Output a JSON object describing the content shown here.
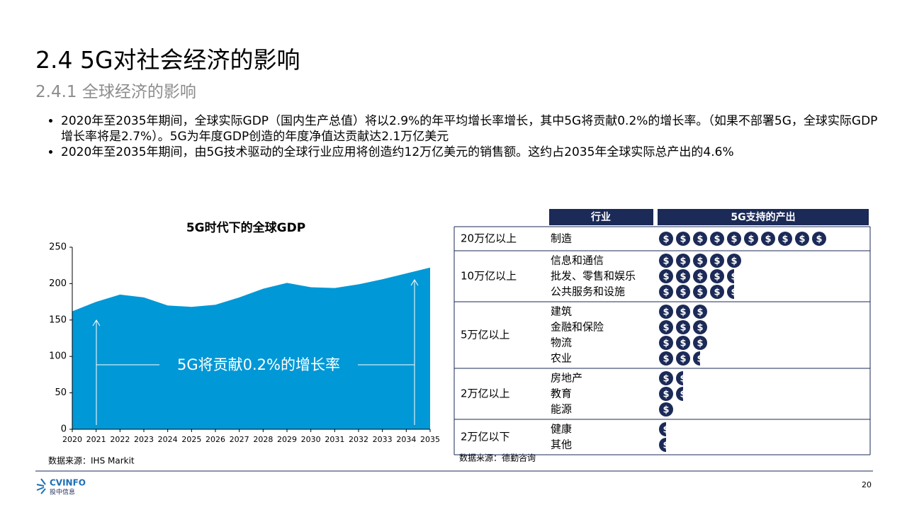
{
  "header": {
    "title": "2.4 5G对社会经济的影响",
    "subtitle": "2.4.1 全球经济的影响"
  },
  "bullets": [
    "2020年至2035年期间，全球实际GDP（国内生产总值）将以2.9%的年平均增长率增长，其中5G将贡献0.2%的增长率。（如果不部署5G，全球实际GDP增长率将是2.7%）。5G为年度GDP创造的年度净值达贡献达2.1万亿美元",
    "2020年至2035年期间，由5G技术驱动的全球行业应用将创造约12万亿美元的销售额。这约占2035年全球实际总产出的4.6%"
  ],
  "chart_data": {
    "type": "area",
    "title": "5G时代下的全球GDP",
    "x": [
      2020,
      2021,
      2022,
      2023,
      2024,
      2025,
      2026,
      2027,
      2028,
      2029,
      2030,
      2031,
      2032,
      2033,
      2034,
      2035
    ],
    "values": [
      162,
      175,
      185,
      181,
      170,
      168,
      171,
      181,
      193,
      201,
      195,
      194,
      199,
      206,
      214,
      222
    ],
    "color": "#0098d6",
    "xlim": [
      2020,
      2035
    ],
    "xticks": [
      2020,
      2021,
      2022,
      2023,
      2024,
      2025,
      2026,
      2027,
      2028,
      2029,
      2030,
      2031,
      2032,
      2033,
      2034,
      2035
    ],
    "ylim": [
      0,
      250
    ],
    "yticks": [
      0,
      50,
      100,
      150,
      200,
      250
    ],
    "annotation": "5G将贡献0.2%的增长率",
    "source": "数据来源：IHS Markit"
  },
  "industry_output": {
    "headers": [
      "行业",
      "5G支持的产出"
    ],
    "coin_symbol": "$",
    "color": "#1b2a57",
    "groups": [
      {
        "label": "20万亿以上",
        "industries": [
          {
            "name": "制造",
            "coins": 10
          }
        ]
      },
      {
        "label": "10万亿以上",
        "industries": [
          {
            "name": "信息和通信",
            "coins": 5
          },
          {
            "name": "批发、零售和娱乐",
            "coins": 4.5
          },
          {
            "name": "公共服务和设施",
            "coins": 4.5
          }
        ]
      },
      {
        "label": "5万亿以上",
        "industries": [
          {
            "name": "建筑",
            "coins": 3
          },
          {
            "name": "金融和保险",
            "coins": 3
          },
          {
            "name": "物流",
            "coins": 3
          },
          {
            "name": "农业",
            "coins": 2.5
          }
        ]
      },
      {
        "label": "2万亿以上",
        "industries": [
          {
            "name": "房地产",
            "coins": 1.5
          },
          {
            "name": "教育",
            "coins": 1.5
          },
          {
            "name": "能源",
            "coins": 1
          }
        ]
      },
      {
        "label": "2万亿以下",
        "industries": [
          {
            "name": "健康",
            "coins": 0.5
          },
          {
            "name": "其他",
            "coins": 0.5
          }
        ]
      }
    ],
    "source": "数据来源：德勤咨询"
  },
  "footer": {
    "logo": "CVINFO",
    "logo_sub": "投中信息",
    "page": 20
  }
}
